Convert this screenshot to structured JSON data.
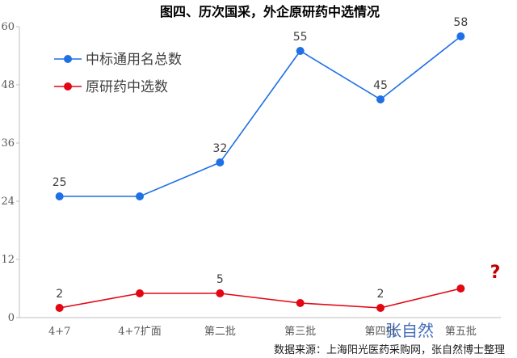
{
  "chart_data": {
    "type": "line",
    "title": "图四、历次国采，外企原研药中选情况",
    "categories": [
      "4+7",
      "4+7扩面",
      "第二批",
      "第三批",
      "第四批",
      "第五批"
    ],
    "ylim": [
      0,
      60
    ],
    "yticks": [
      "0",
      "12",
      "24",
      "36",
      "48",
      "60"
    ],
    "grid": false,
    "legend_position": "top-left",
    "series": [
      {
        "name": "中标通用名总数",
        "color": "#1f6fe5",
        "values": [
          25,
          25,
          32,
          55,
          45,
          58
        ],
        "labels": [
          "25",
          "",
          "32",
          "55",
          "45",
          "58"
        ]
      },
      {
        "name": "原研药中选数",
        "color": "#e30613",
        "values": [
          2,
          5,
          5,
          3,
          2,
          6
        ],
        "labels": [
          "2",
          "",
          "5",
          "",
          "2",
          ""
        ]
      }
    ],
    "annotation": "?",
    "source": "数据来源：上海阳光医药采购网，张自然博士整理",
    "signature": "张自然"
  }
}
